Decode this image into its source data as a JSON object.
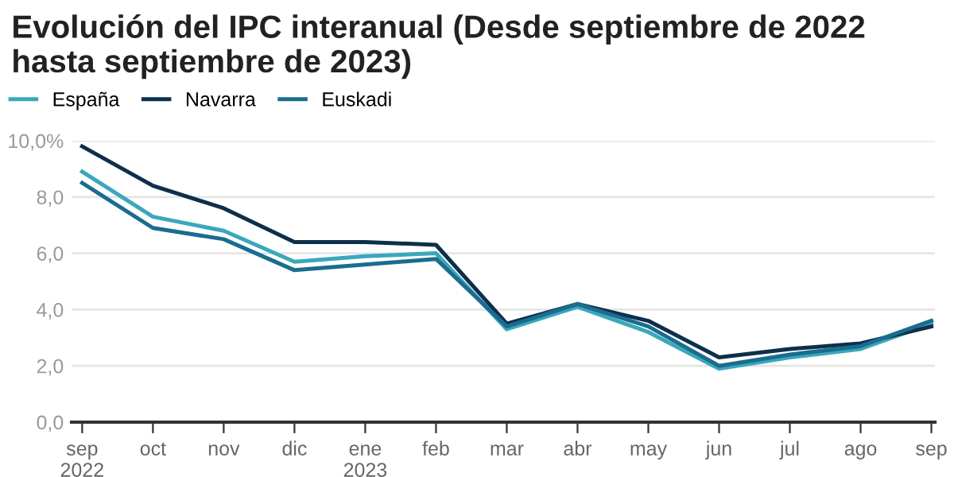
{
  "chart_data": {
    "type": "line",
    "title": "Evolución del IPC interanual (Desde septiembre de 2022 hasta septiembre de 2023)",
    "categories": [
      "sep\n2022",
      "oct",
      "nov",
      "dic",
      "ene\n2023",
      "feb",
      "mar",
      "abr",
      "may",
      "jun",
      "jul",
      "ago",
      "sep"
    ],
    "series": [
      {
        "name": "España",
        "color": "#3ba7bb",
        "values": [
          8.9,
          7.3,
          6.8,
          5.7,
          5.9,
          6.0,
          3.3,
          4.1,
          3.2,
          1.9,
          2.3,
          2.6,
          3.5
        ]
      },
      {
        "name": "Navarra",
        "color": "#0e2f4b",
        "values": [
          9.8,
          8.4,
          7.6,
          6.4,
          6.4,
          6.3,
          3.5,
          4.2,
          3.6,
          2.3,
          2.6,
          2.8,
          3.4
        ]
      },
      {
        "name": "Euskadi",
        "color": "#1a6d8f",
        "values": [
          8.5,
          6.9,
          6.5,
          5.4,
          5.6,
          5.8,
          3.4,
          4.2,
          3.4,
          2.0,
          2.4,
          2.7,
          3.6
        ]
      }
    ],
    "ylim": [
      0,
      10
    ],
    "yticks": [
      {
        "value": 0,
        "label": "0,0"
      },
      {
        "value": 2,
        "label": "2,0"
      },
      {
        "value": 4,
        "label": "4,0"
      },
      {
        "value": 6,
        "label": "6,0"
      },
      {
        "value": 8,
        "label": "8,0"
      },
      {
        "value": 10,
        "label": "10,0%"
      }
    ],
    "grid": "y",
    "legend": "top left",
    "marker": "none",
    "line_style": "solid"
  }
}
